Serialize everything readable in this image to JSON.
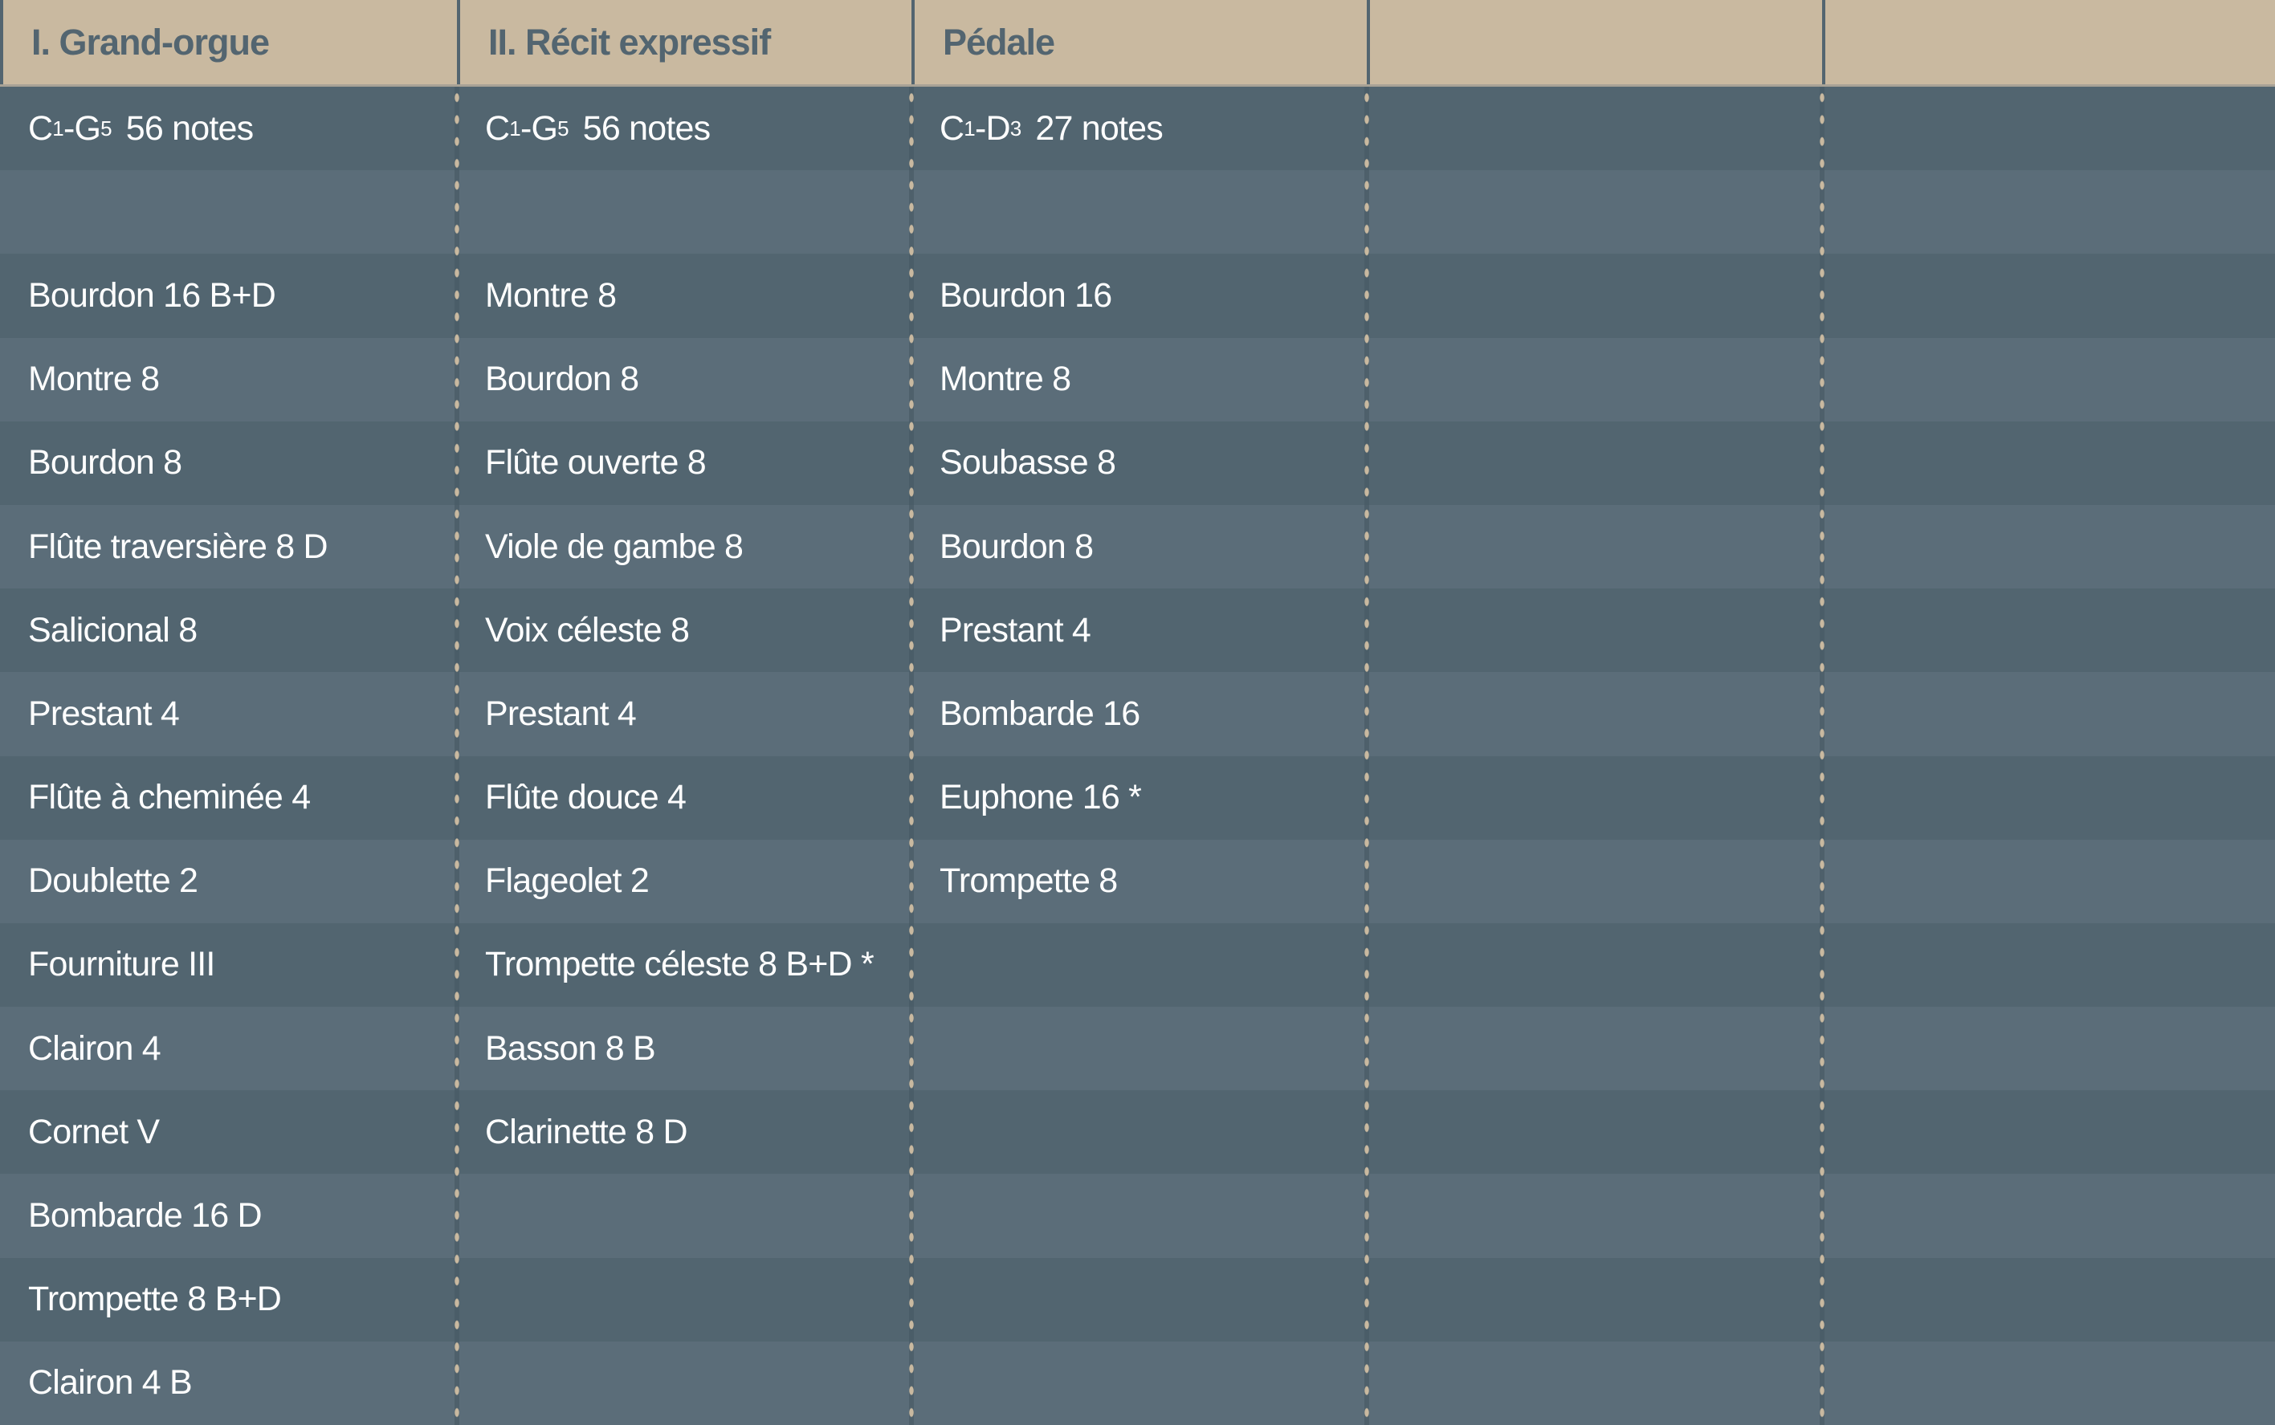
{
  "colors": {
    "header_bg": "#c9b9a0",
    "header_text": "#536570",
    "row_dark": "#526570",
    "row_light": "#5b6d79",
    "divider_dots": "#c9b9a0",
    "text": "#ffffff"
  },
  "columns": [
    {
      "title": "I. Grand-orgue",
      "range": {
        "from": "C",
        "from_oct": "1",
        "to": "G",
        "to_oct": "5",
        "count": "56 notes"
      },
      "stops": [
        "",
        "Bourdon 16 B+D",
        "Montre 8",
        "Bourdon 8",
        "Flûte traversière 8 D",
        "Salicional 8",
        "Prestant 4",
        "Flûte à cheminée 4",
        "Doublette 2",
        "Fourniture III",
        "Clairon 4",
        "Cornet V",
        "Bombarde 16 D",
        "Trompette 8 B+D",
        "Clairon 4 B"
      ]
    },
    {
      "title": "II. Récit expressif",
      "range": {
        "from": "C",
        "from_oct": "1",
        "to": "G",
        "to_oct": "5",
        "count": "56 notes"
      },
      "stops": [
        "",
        "Montre 8",
        "Bourdon 8",
        "Flûte ouverte 8",
        "Viole de gambe 8",
        "Voix céleste 8",
        "Prestant 4",
        "Flûte douce 4",
        "Flageolet 2",
        "Trompette céleste 8 B+D *",
        "Basson 8 B",
        "Clarinette 8 D",
        "",
        "",
        ""
      ]
    },
    {
      "title": "Pédale",
      "range": {
        "from": "C",
        "from_oct": "1",
        "to": "D",
        "to_oct": "3",
        "count": "27 notes"
      },
      "stops": [
        "",
        "Bourdon 16",
        "Montre 8",
        "Soubasse 8",
        "Bourdon 8",
        "Prestant 4",
        "Bombarde 16",
        "Euphone 16 *",
        "Trompette 8",
        "",
        "",
        "",
        "",
        "",
        ""
      ]
    },
    {
      "title": "",
      "range": null,
      "stops": [
        "",
        "",
        "",
        "",
        "",
        "",
        "",
        "",
        "",
        "",
        "",
        "",
        "",
        "",
        ""
      ]
    },
    {
      "title": "",
      "range": null,
      "stops": [
        "",
        "",
        "",
        "",
        "",
        "",
        "",
        "",
        "",
        "",
        "",
        "",
        "",
        "",
        ""
      ]
    }
  ]
}
